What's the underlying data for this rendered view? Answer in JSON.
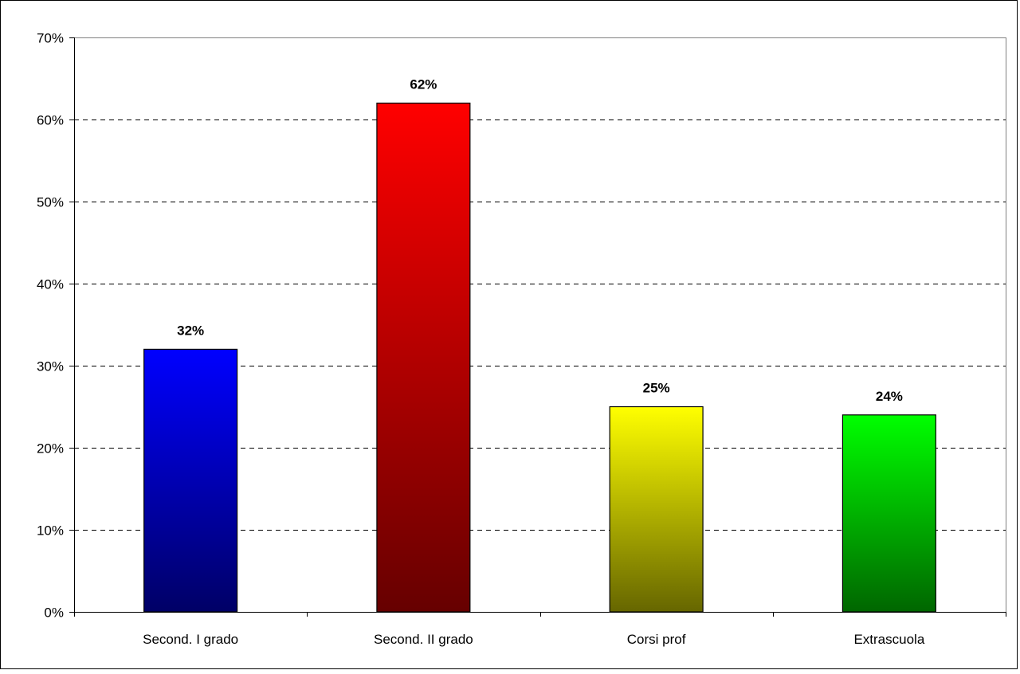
{
  "chart_data": {
    "type": "bar",
    "title": "",
    "xlabel": "",
    "ylabel": "",
    "categories": [
      "Second. I grado",
      "Second. II grado",
      "Corsi prof",
      "Extrascuola"
    ],
    "values": [
      0.32,
      0.62,
      0.25,
      0.24
    ],
    "value_labels": [
      "32%",
      "62%",
      "25%",
      "24%"
    ],
    "ylim": [
      0,
      0.7
    ],
    "yticks": [
      0,
      0.1,
      0.2,
      0.3,
      0.4,
      0.5,
      0.6,
      0.7
    ],
    "ytick_labels": [
      "0%",
      "10%",
      "20%",
      "30%",
      "40%",
      "50%",
      "60%",
      "70%"
    ],
    "grid": true,
    "grid_style": "dashed",
    "legend": "none",
    "bar_colors": [
      {
        "top": "#0000ff",
        "bottom": "#000066"
      },
      {
        "top": "#ff0000",
        "bottom": "#660000"
      },
      {
        "top": "#ffff00",
        "bottom": "#666600"
      },
      {
        "top": "#00ff00",
        "bottom": "#006600"
      }
    ]
  }
}
